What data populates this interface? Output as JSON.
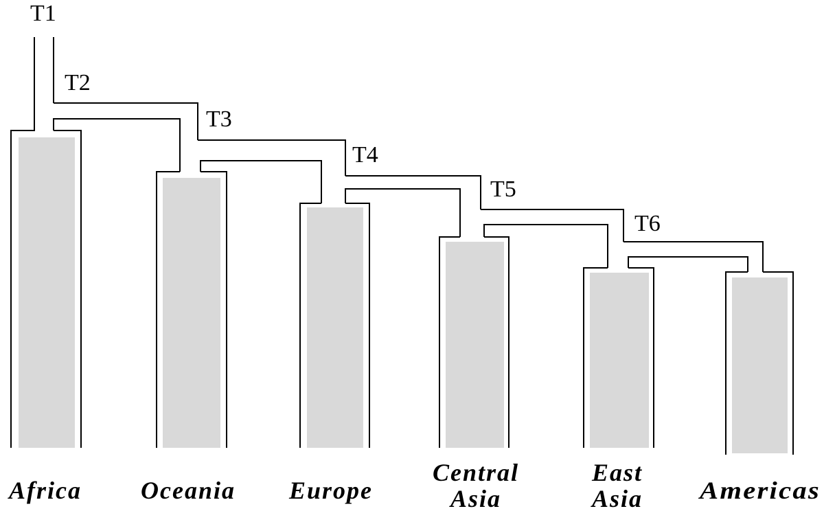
{
  "time_labels": [
    "T1",
    "T2",
    "T3",
    "T4",
    "T5",
    "T6"
  ],
  "populations": [
    {
      "name": "Africa",
      "lines": [
        "Africa"
      ]
    },
    {
      "name": "Oceania",
      "lines": [
        "Oceania"
      ]
    },
    {
      "name": "Europe",
      "lines": [
        "Europe"
      ]
    },
    {
      "name": "Central Asia",
      "lines": [
        "Central",
        "Asia"
      ]
    },
    {
      "name": "East Asia",
      "lines": [
        "East",
        "Asia"
      ]
    },
    {
      "name": "Americas",
      "lines": [
        "Americas"
      ]
    }
  ],
  "colors": {
    "line": "#000000",
    "fill": "#d9d9d9",
    "background": "#ffffff"
  }
}
